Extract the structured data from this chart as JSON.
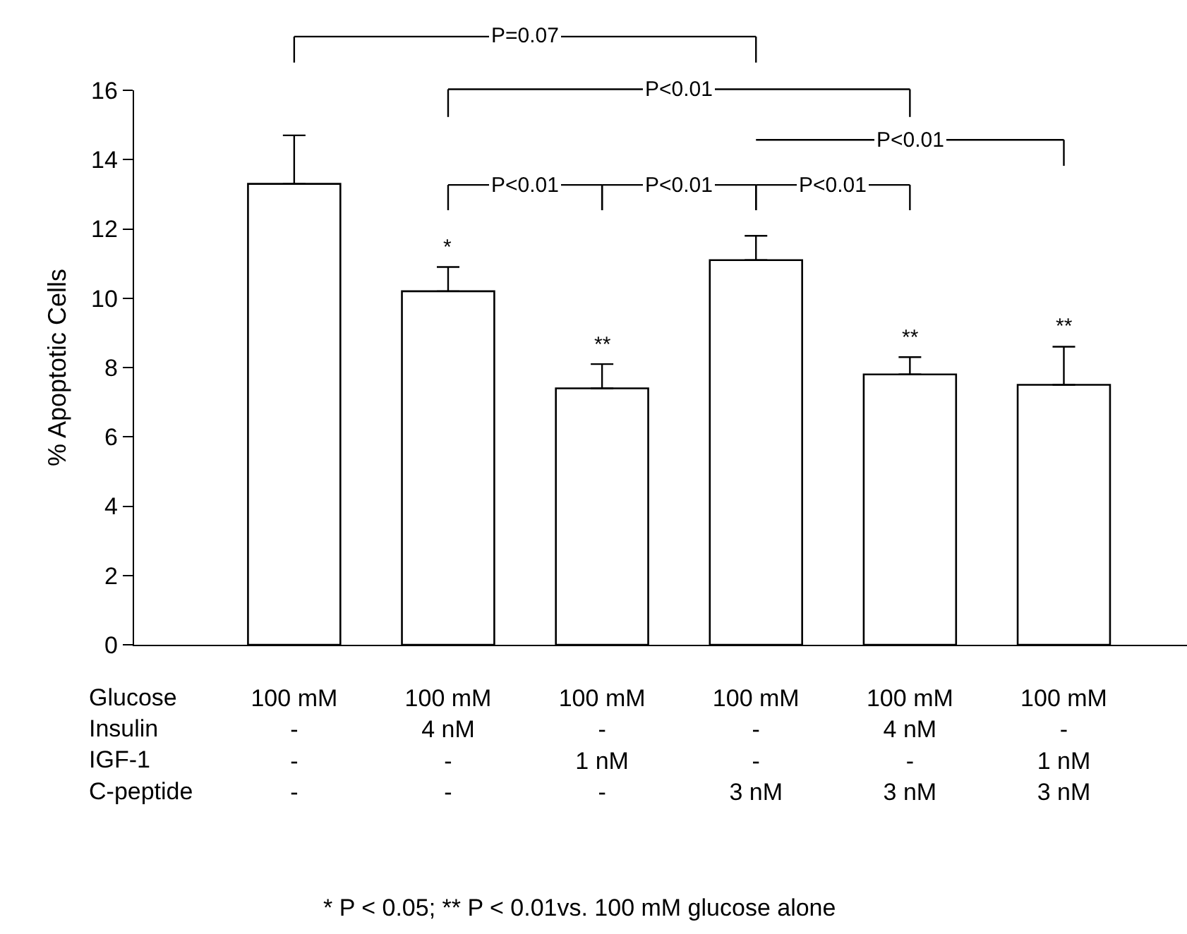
{
  "chart_data": {
    "type": "bar",
    "ylabel": "% Apoptotic Cells",
    "xlabel": "Glucose\nInsulin\nIGF-1\nC-peptide",
    "categories": [
      "100 mM\n-\n-\n-",
      "100 mM\n4 nM\n-\n-",
      "100 mM\n-\n1 nM\n-",
      "100 mM\n-\n-\n3 nM",
      "100 mM\n4 nM\n-\n3 nM",
      "100 mM\n-\n1 nM\n3 nM"
    ],
    "values": [
      13.3,
      10.2,
      7.4,
      11.1,
      7.8,
      7.5
    ],
    "errors": [
      [
        13.3,
        14.7
      ],
      [
        10.2,
        10.9
      ],
      [
        7.4,
        8.1
      ],
      [
        11.1,
        11.8
      ],
      [
        7.8,
        8.3
      ],
      [
        7.5,
        8.6
      ]
    ],
    "value_labels": [
      null,
      "*",
      "**",
      null,
      "**",
      "**"
    ],
    "color": "#ffffff",
    "ylim": [
      0,
      16
    ],
    "yticks": [
      0,
      2,
      4,
      6,
      8,
      10,
      12,
      14,
      16
    ],
    "annotations": [
      "P=0.07",
      "P<0.01",
      "P<0.01",
      "P<0.01",
      "P<0.01",
      "P<0.01",
      "* P < 0.05; ** P < 0.01vs. 100 mM glucose alone"
    ]
  }
}
